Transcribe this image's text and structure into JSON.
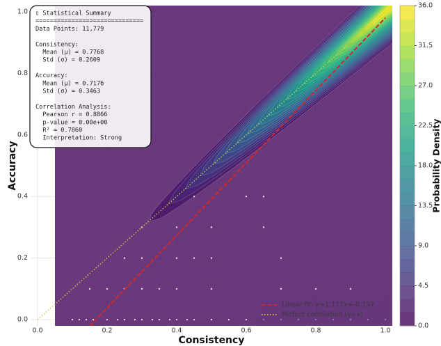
{
  "chart_data": {
    "type": "density-contour",
    "xlabel": "Consistency",
    "ylabel": "Accuracy",
    "xlim": [
      -0.02,
      1.02
    ],
    "ylim": [
      -0.02,
      1.02
    ],
    "xticks": [
      {
        "value": 0,
        "label": "0.0"
      },
      0.2,
      0.4,
      0.6,
      0.8,
      {
        "value": 1,
        "label": "1.0"
      }
    ],
    "yticks": [
      {
        "value": 0,
        "label": "0.0"
      },
      0.2,
      0.4,
      0.6,
      0.8,
      {
        "value": 1,
        "label": "1.0"
      }
    ],
    "grid": true,
    "colormap": "viridis",
    "density_extent": [
      0.05,
      1.02,
      -0.02,
      1.02
    ],
    "levels": [
      0,
      1.5,
      3,
      4.5,
      6,
      7.5,
      9,
      10.5,
      12,
      13.5,
      15,
      16.5,
      18,
      19.5,
      21,
      22.5,
      24,
      25.5,
      27,
      28.5,
      30,
      31.5,
      33,
      34.5,
      36
    ],
    "colorbar": {
      "label": "Probability Density",
      "lim": [
        0,
        36
      ],
      "ticks": [
        {
          "value": 0,
          "label": "0.0"
        },
        4.5,
        {
          "value": 9,
          "label": "9.0"
        },
        13.5,
        {
          "value": 18,
          "label": "18.0"
        },
        22.5,
        {
          "value": 27,
          "label": "27.0"
        },
        31.5,
        {
          "value": 36,
          "label": "36.0"
        }
      ]
    },
    "points": {
      "color": "#ffffff",
      "x": [
        0.1,
        0.12,
        0.14,
        0.16,
        0.2,
        0.23,
        0.25,
        0.28,
        0.3,
        0.33,
        0.35,
        0.38,
        0.4,
        0.43,
        0.45,
        0.5,
        0.55,
        0.6,
        0.65,
        0.7,
        0.75,
        0.8,
        0.85,
        0.9,
        0.95,
        1.0,
        0.15,
        0.2,
        0.25,
        0.3,
        0.35,
        0.4,
        0.5,
        0.7,
        0.8,
        0.9,
        0.25,
        0.3,
        0.4,
        0.45,
        0.5,
        0.7,
        0.3,
        0.4,
        0.5,
        0.65,
        0.45,
        0.6,
        0.65
      ],
      "y": [
        0,
        0,
        0,
        0,
        0,
        0,
        0,
        0,
        0,
        0,
        0,
        0,
        0,
        0,
        0,
        0,
        0,
        0,
        0,
        0,
        0,
        0,
        0,
        0,
        0,
        0,
        0.1,
        0.1,
        0.1,
        0.1,
        0.1,
        0.1,
        0.1,
        0.1,
        0.1,
        0.1,
        0.2,
        0.2,
        0.2,
        0.2,
        0.2,
        0.2,
        0.3,
        0.3,
        0.3,
        0.3,
        0.4,
        0.4,
        0.4
      ]
    },
    "series": [
      {
        "name": "Linear fit: y=1.177x+-0.197",
        "color": "#d62728",
        "style": "dashed",
        "x": [
          0.15,
          1.0
        ],
        "values": [
          -0.0205,
          0.98
        ]
      },
      {
        "name": "Perfect correlation (y=x)",
        "color": "#d4c84a",
        "style": "dotted",
        "x": [
          0,
          1
        ],
        "values": [
          0,
          1
        ]
      }
    ],
    "stats_box": [
      [
        "▯ Statistical Summary",
        "==============================",
        "Data Points: 11,779"
      ],
      [
        "Consistency:",
        "  Mean (μ) = 0.7768",
        "  Std (σ) = 0.2609"
      ],
      [
        "Accuracy:",
        "  Mean (μ) = 0.7176",
        "  Std (σ) = 0.3463"
      ],
      [
        "Correlation Analysis:",
        "  Pearson r = 0.8866",
        "  p-value = 0.00e+00",
        "  R² = 0.7860",
        "  Interpretation: Strong"
      ]
    ]
  }
}
